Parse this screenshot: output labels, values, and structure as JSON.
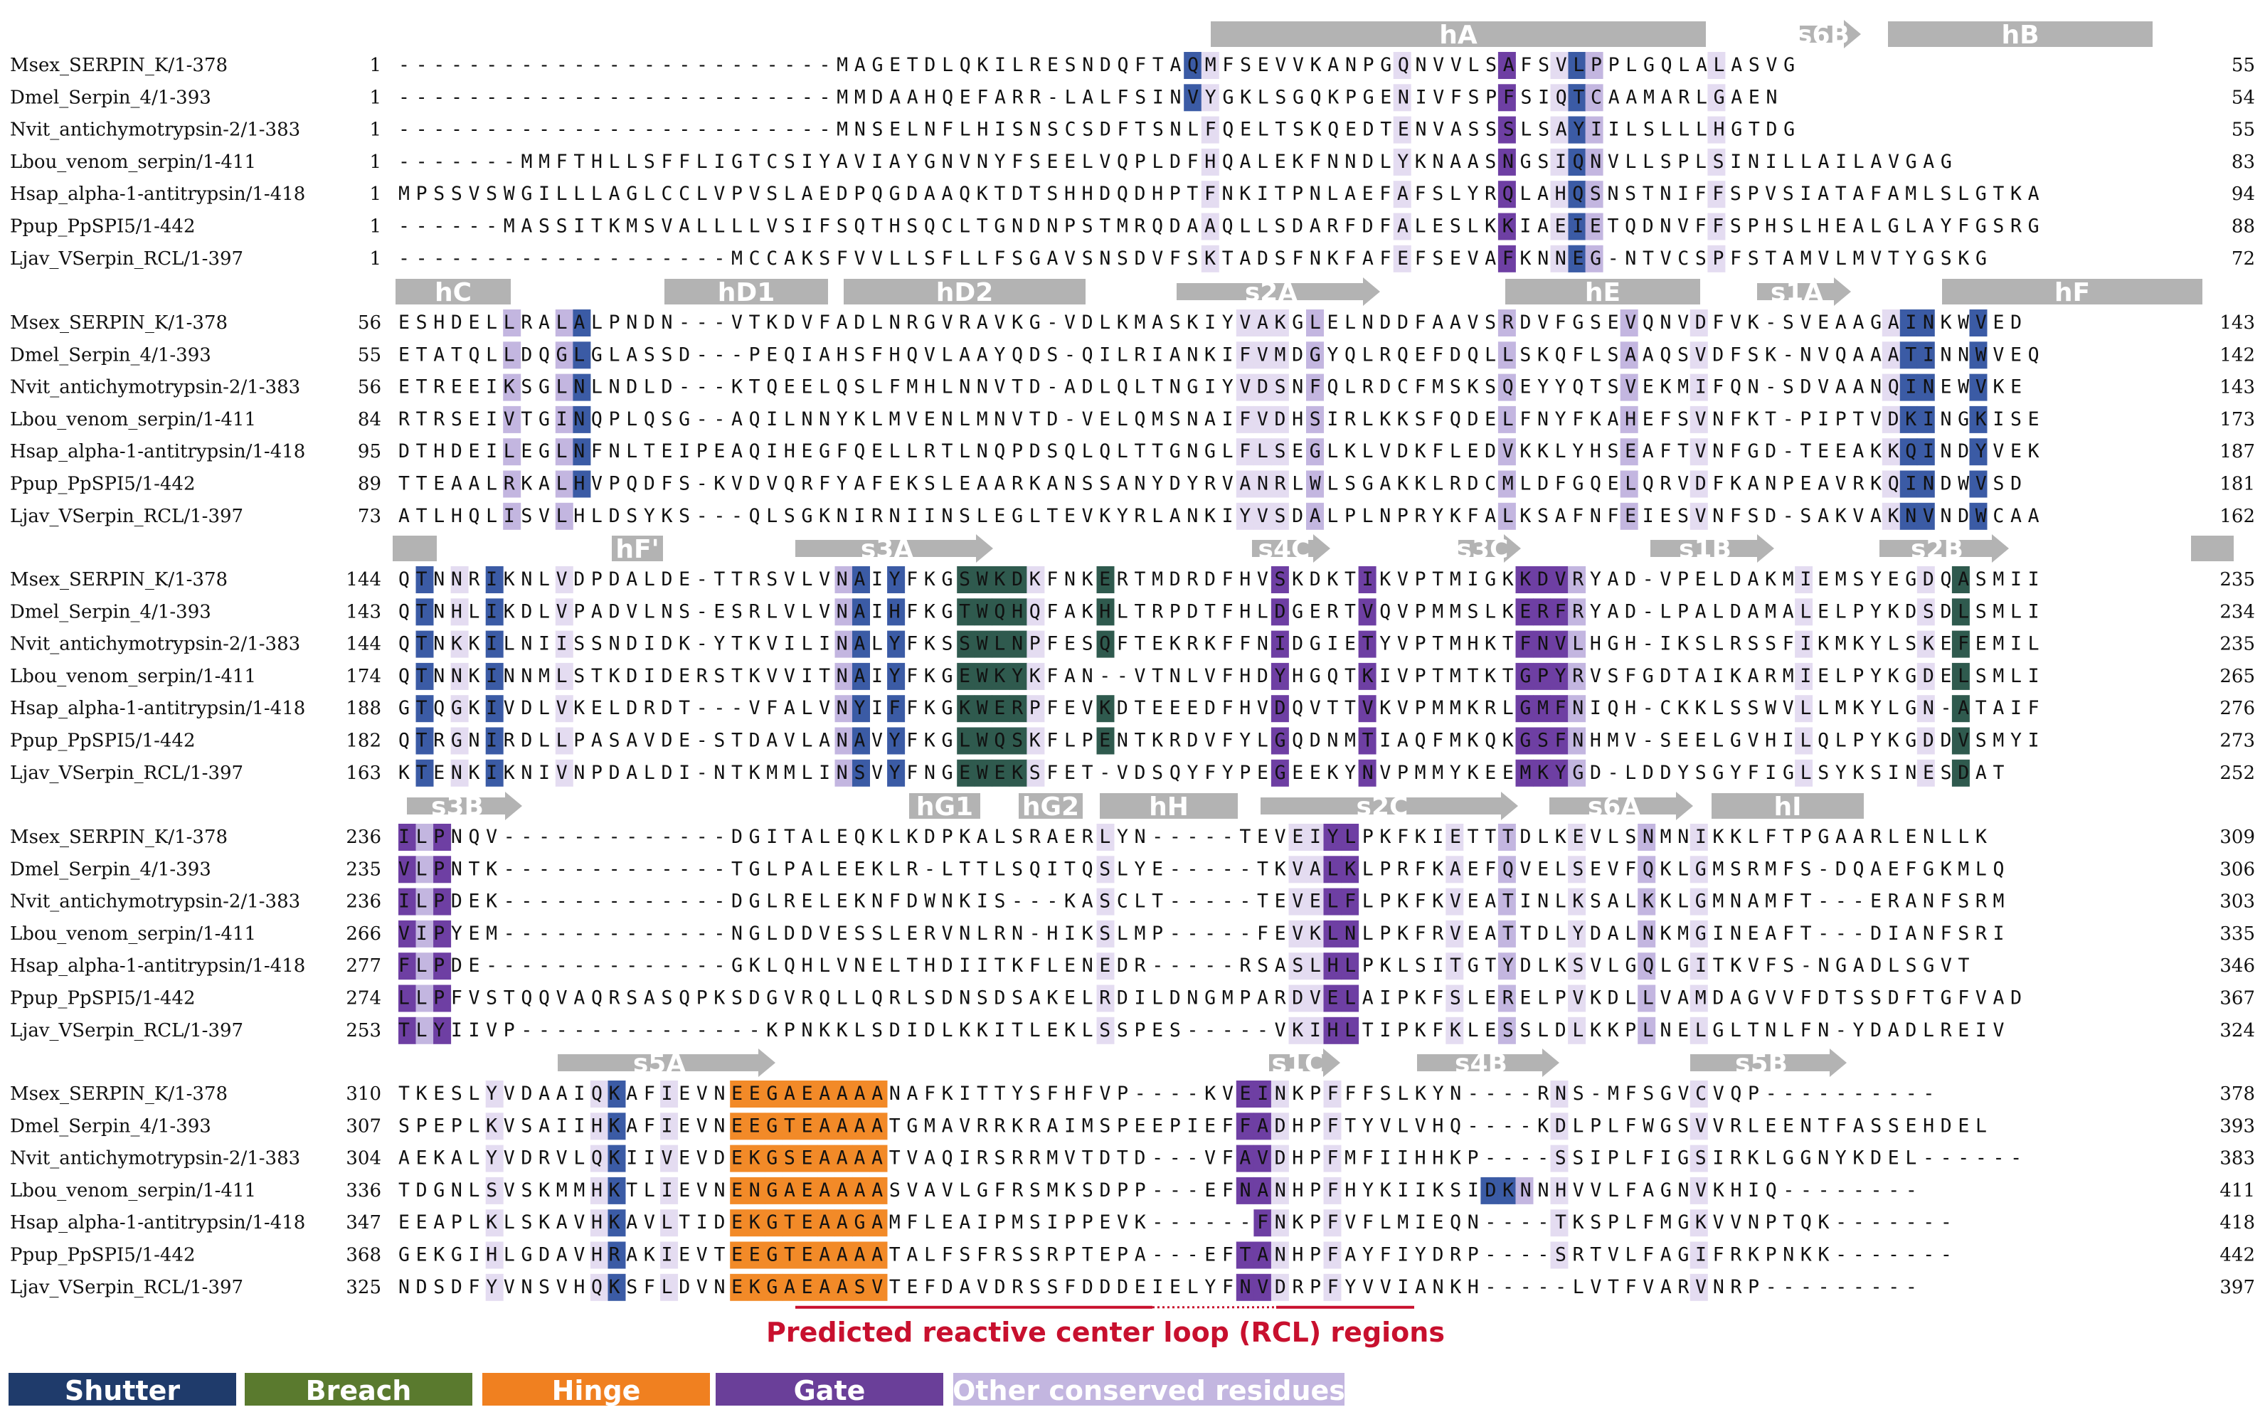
{
  "names": [
    "Msex_SERPIN_K/1-378",
    "Dmel_Serpin_4/1-393",
    "Nvit_antichymotrypsin-2/1-383",
    "Lbou_venom_serpin/1-411",
    "Hsap_alpha-1-antitrypsin/1-418",
    "Ppup_PpSPI5/1-442",
    "Ljav_VSerpin_RCL/1-397"
  ],
  "colors": {
    "shutter": "#1f3b6b",
    "breach": "#5a7a2e",
    "hinge": "#f08020",
    "gate": "#6a3f99",
    "other_dark": "#9f8fc8",
    "other_mid": "#c3b6e0",
    "other_light": "#e4dcf1",
    "blue": "#3b5ba5",
    "green": "#2f5a4e",
    "orange": "#f28a28",
    "purple": "#6e3fa3",
    "ss_gray": "#b3b3b3",
    "rcl_red": "#c8102e"
  },
  "blocks": [
    {
      "rows": [
        {
          "start": "1",
          "seq": "-------------------------MAGETDLQKILRESNDQFTAQMFSEVVKANPGQNVVLSAFSVLPPLGQLALASVG",
          "end": "55"
        },
        {
          "start": "1",
          "seq": "-------------------------MMDAAHQEFARR-LALFSINVYGKLSGQKPGENIVFSPFSIQTCAAMARLGAEN",
          "end": "54"
        },
        {
          "start": "1",
          "seq": "-------------------------MNSELNFLHISNSCSDFTSNLFQELTSKQEDTENVASSSLSAYIILSLLLHGTDG",
          "end": "55"
        },
        {
          "start": "1",
          "seq": "-------MMFTHLLSFFLIGTCSIYAVIAYGNVNYFSEELVQPLDFHQALEKFNNDLYKNAASNGSIQNVLLSPLSINILLAILAVGAG",
          "end": "83"
        },
        {
          "start": "1",
          "seq": "MPSSVSWGILLLAGLCCLVPVSLAEDPQGDAAQKTDTSHHDQDHPTFNKITPNLAEFAFSLYRQLAHQSNSTNIFFSPVSIATAFAMLSLGTKA",
          "end": "94"
        },
        {
          "start": "1",
          "seq": "------MASSITKMSVALLLLVSIFSQTHSQCLTGNDNPSTMRQDAAQLLSDARFDFALESLKKIAEIETQDNVFFSPHSLHEALGLAYFGSRG",
          "end": "88"
        },
        {
          "start": "1",
          "seq": "-------------------MCCAKSFVVLLSFLLFSGAVSNSDVFSKTADSFNKFAFEFSEVAFKNNEG-NTVCSPFSTAMVLMVTYGSKG",
          "end": "72"
        }
      ],
      "ss": [
        {
          "label": "hA",
          "type": "helix"
        },
        {
          "label": "s6B",
          "type": "strand"
        },
        {
          "label": "hB",
          "type": "helix"
        }
      ]
    },
    {
      "rows": [
        {
          "start": "56",
          "seq": "ESHDELLRALALPNDN---VTKDVFADLNRGVRAVKG-VDLKMASKIYVAKGLELNDDFAAVSRDVFGSEVQNVDFVK-SVEAAGAINKWVED",
          "end": "143"
        },
        {
          "start": "55",
          "seq": "ETATQLLDQGLGLASSD---PEQIAHSFHQVLAAYQDS-QILRIANKIFVMDGYQLRQEFDQLLSKQFLSAAQSVDFSK-NVQAAATINNWVEQ",
          "end": "142"
        },
        {
          "start": "56",
          "seq": "ETREEIKSGLNLNDLD---KTQEELQSLFMHLNNVTD-ADLQLTNGIYVDSNFQLRDCFMSKSQEYYQTSVEKMIFQN-SDVAANQINEWVKE",
          "end": "143"
        },
        {
          "start": "84",
          "seq": "RTRSEIVTGINQPLQSG--AQILNNYKLMVENLMNVTD-VELQMSNAIFVDHSIRLKKSFQDELFNYFKAHEFSVNFKT-PIPTVDKINGKISE",
          "end": "173"
        },
        {
          "start": "95",
          "seq": "DTHDEILEGLNFNLTEIPEAQIHEGFQELLRTLNQPDSQLQLTTGNGLFLSEGLKLVDKFLEDVKKLYHSEAFTVNFGD-TEEAKKQINDYVEK",
          "end": "187"
        },
        {
          "start": "89",
          "seq": "TTEAALRKALHVPQDFS-KVDVQRFYAFEKSLEAARKANSSANYDYRVANRLWLSGAKKLRDCMLDFGQELQRVDFKANPEAVRKQINDWVSD",
          "end": "181"
        },
        {
          "start": "73",
          "seq": "ATLHQLISVLHLDSYKS---QLSGKNIRNIINSLEGLTEVKYRLANKIYVSDALPLNPRYKFALKSAFNFEIESVNFSD-SAKVAKNVNDWCAA",
          "end": "162"
        }
      ],
      "ss": [
        {
          "label": "hC",
          "type": "helix"
        },
        {
          "label": "hD1",
          "type": "helix"
        },
        {
          "label": "hD2",
          "type": "helix"
        },
        {
          "label": "s2A",
          "type": "strand"
        },
        {
          "label": "hE",
          "type": "helix"
        },
        {
          "label": "s1A",
          "type": "strand"
        },
        {
          "label": "hF",
          "type": "helix"
        }
      ]
    },
    {
      "rows": [
        {
          "start": "144",
          "seq": "QTNNRIKNLVDPDALDE-TTRSVLVNAIYFKGSWKDKFNKERTMDRDFHVSKDKTIKVPTMIGKKDVRYAD-VPELDAKMIEMSYEGDQASMII",
          "end": "235"
        },
        {
          "start": "143",
          "seq": "QTNHLIKDLVPADVLNS-ESRLVLVNAIHFKGTWQHQFAKHLTRPDTFHLDGERTVQVPMMSLKERFRYAD-LPALDAMALELPYKDSDLSMLI",
          "end": "234"
        },
        {
          "start": "144",
          "seq": "QTNKKILNIISSNDIDK-YTKVILINALYFKSSWLNPFESQFTEKRKFFNIDGIETYVPTMHKTFNVLHGH-IKSLRSSFIKMKYLSKEFEMIL",
          "end": "235"
        },
        {
          "start": "174",
          "seq": "QTNNKINNMLSTKDIDERSTKVVITNAIYFKGEWKYKFAN--VTNLVFHDYHGQTKIVPTMTKTGPYRVSFGDTAIKARMIELPYKGDELSMLI",
          "end": "265"
        },
        {
          "start": "188",
          "seq": "GTQGKIVDLVKELDRDT---VFALVNYIFFKGKWERPFEVKDTEEEDFHVDQVTTVKVPMMKRLGMFNIQH-CKKLSSWVLLMKYLGN-ATAIF",
          "end": "276"
        },
        {
          "start": "182",
          "seq": "QTRGNIRDLLPASAVDE-STDAVLANAVYFKGLWQSKFLPENTKRDVFYLGQDNMTIAQFMKQKGSFNHMV-SEELGVHILQLPYKGDDVSMYI",
          "end": "273"
        },
        {
          "start": "163",
          "seq": "KTENKIKNIVNPDALDI-NTKMMLINSVYFNGEWEKSFET-VDSQYFYPEGEEKYNVPMMYKEEMKYGD-LDDYSGYFIGLSYKSINESDAT",
          "end": "252"
        }
      ],
      "ss": [
        {
          "label": "",
          "type": "helix"
        },
        {
          "label": "hF'",
          "type": "helix"
        },
        {
          "label": "s3A",
          "type": "strand"
        },
        {
          "label": "s4C",
          "type": "strand"
        },
        {
          "label": "s3C",
          "type": "strand"
        },
        {
          "label": "s1B",
          "type": "strand"
        },
        {
          "label": "s2B",
          "type": "strand"
        },
        {
          "label": "",
          "type": "helix"
        }
      ]
    },
    {
      "rows": [
        {
          "start": "236",
          "seq": "ILPNQV-------------DGITALEQKLKDPKALSRAERLYN-----TEVEIYLPKFKIETTTDLKEVLSNMNIKKLFTPGAARLENLLK",
          "end": "309"
        },
        {
          "start": "235",
          "seq": "VLPNTK-------------TGLPALEEKLR-LTTLSQITQSLYE-----TKVALKLPRFKAEFQVELSEVFQKLGMSRMFS-DQAEFGKMLQ",
          "end": "306"
        },
        {
          "start": "236",
          "seq": "ILPDEK-------------DGLRELEKNFDWNKIS---KASCLT-----TEVELFLPKFKVEATINLKSALKKLGMNAMFT---ERANFSRM",
          "end": "303"
        },
        {
          "start": "266",
          "seq": "VIPYEM-------------NGLDDVESSLERVNLRN-HIKSLMP-----FEVKLNLPKFRVEATTDLYDALNKMGINEAFT---DIANFSRI",
          "end": "335"
        },
        {
          "start": "277",
          "seq": "FLPDE--------------GKLQHLVNELTHDIITKFLENEDR-----RSASLHLPKLSITGTYDLKSVLGQLGITKVFS-NGADLSGVT",
          "end": "346"
        },
        {
          "start": "274",
          "seq": "LLPFVSTQQVAQRSASQPKSDGVRQLLQRLSDNSDSAKELRDILDNGMPARDVELAIPKFSLERELPVKDLLVAMDAGVVFDTSSDFTGFVAD",
          "end": "367"
        },
        {
          "start": "253",
          "seq": "TLYIIVP--------------KPNKKLSDIDLKKITLEKLSSPES-----VKIHLTIPKFKLESSLDLKKPLNELGLTNLFN-YDADLREIV",
          "end": "324"
        }
      ],
      "ss": [
        {
          "label": "s3B",
          "type": "strand"
        },
        {
          "label": "hG1",
          "type": "helix"
        },
        {
          "label": "hG2",
          "type": "helix"
        },
        {
          "label": "hH",
          "type": "helix"
        },
        {
          "label": "s2C",
          "type": "strand"
        },
        {
          "label": "s6A",
          "type": "strand"
        },
        {
          "label": "hI",
          "type": "helix"
        }
      ]
    },
    {
      "rows": [
        {
          "start": "310",
          "seq": "TKESLYVDAAIQKAFIEVNEEGAEAAAANAFKITTYSFHFVP----KVEINKPFFFSLKYN----RNS-MFSGVCVQP----------",
          "end": "378"
        },
        {
          "start": "307",
          "seq": "SPEPLKVSAIIHKAFIEVNEEGTEAAAATGMAVRRKRAIMSPEEPIEFFADHPFTYVLVHQ----KDLPLFWGSVVRLEENTFASSEHDEL",
          "end": "393"
        },
        {
          "start": "304",
          "seq": "AEKALYVDRVLQKIIVEVDEKGSEAAAATVAQIRSRRMVTDTD---VFAVDHPFMFIIHHKP----SSIPLFIGSIRKLGGNYKDEL------",
          "end": "383"
        },
        {
          "start": "336",
          "seq": "TDGNLSVSKMMHKTLIEVNENGAEAAAASVAVLGFRSMKSDPP---EFNANHPFHYKIIKSIDKNNHVVLFAGNVKHIQ--------",
          "end": "411"
        },
        {
          "start": "347",
          "seq": "EEAPLKLSKAVHKAVLTIDEKGTEAAGAMFLEAIPMSIPPEVK------FNKPFVFLMIEQN----TKSPLFMGKVVNPTQK-------",
          "end": "418"
        },
        {
          "start": "368",
          "seq": "GEKGIHLGDAVHRAKIEVTEEGTEAAAATALFSFRSSRPTEPA---EFTANHPFAYFIYDRP----SRTVLFAGIFRKPNKK-------",
          "end": "442"
        },
        {
          "start": "325",
          "seq": "NDSDFYVNSVHQKSFLDVNEKGAEAASVTEFDAVDRSSFDDDEIELYFNVDRPFYVVIANKH-----LVTFVARVNRP---------",
          "end": "397"
        }
      ],
      "ss": [
        {
          "label": "s5A",
          "type": "strand"
        },
        {
          "label": "s1C",
          "type": "strand"
        },
        {
          "label": "s4B",
          "type": "strand"
        },
        {
          "label": "s5B",
          "type": "strand"
        }
      ],
      "rcl_label": "Predicted reactive center loop (RCL) regions"
    }
  ],
  "legend": [
    {
      "label": "Shutter",
      "key": "shutter"
    },
    {
      "label": "Breach",
      "key": "breach"
    },
    {
      "label": "Hinge",
      "key": "hinge"
    },
    {
      "label": "Gate",
      "key": "gate"
    },
    {
      "label": "Other conserved residues",
      "key": "other_mid"
    }
  ]
}
